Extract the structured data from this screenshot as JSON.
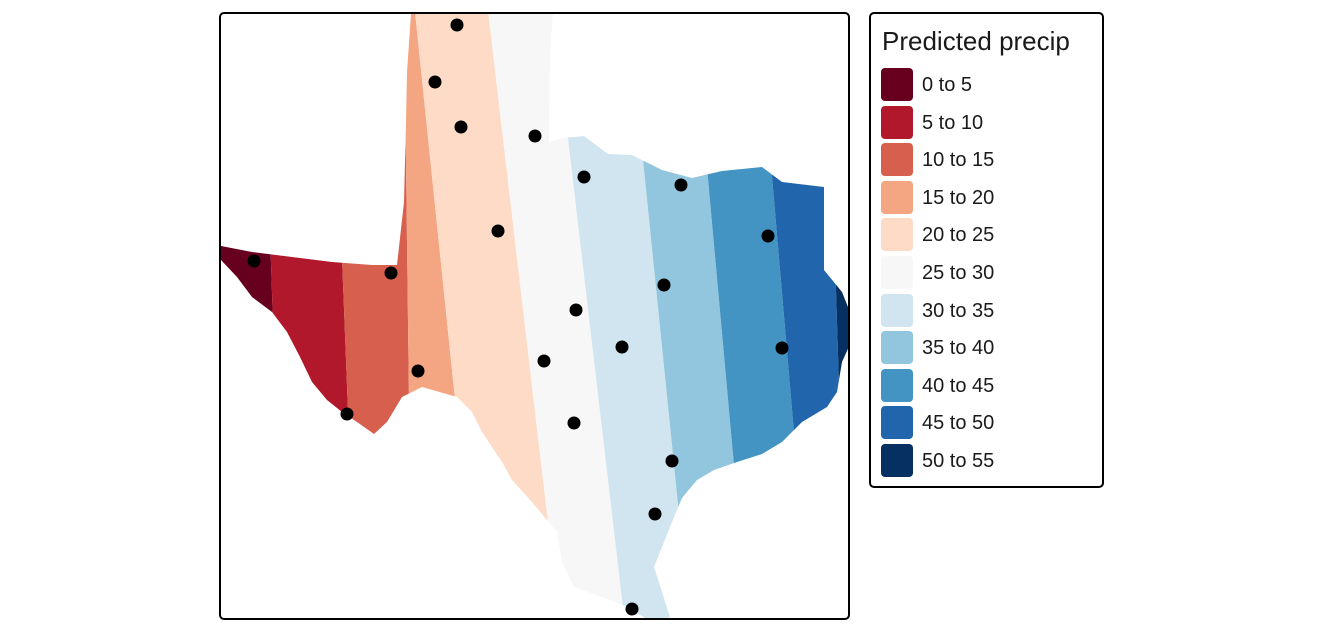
{
  "legend": {
    "title": "Predicted precip",
    "items": [
      {
        "label": "0 to 5",
        "color": "#67001f"
      },
      {
        "label": "5 to 10",
        "color": "#b2182b"
      },
      {
        "label": "10 to 15",
        "color": "#d6604d"
      },
      {
        "label": "15 to 20",
        "color": "#f4a582"
      },
      {
        "label": "20 to 25",
        "color": "#fddbc7"
      },
      {
        "label": "25 to 30",
        "color": "#f7f7f7"
      },
      {
        "label": "30 to 35",
        "color": "#d1e5f0"
      },
      {
        "label": "35 to 40",
        "color": "#92c5de"
      },
      {
        "label": "40 to 45",
        "color": "#4393c3"
      },
      {
        "label": "45 to 50",
        "color": "#2166ac"
      },
      {
        "label": "50 to 55",
        "color": "#053061"
      }
    ]
  },
  "map": {
    "region": "Texas",
    "stations": 20,
    "point_color": "#000000"
  }
}
